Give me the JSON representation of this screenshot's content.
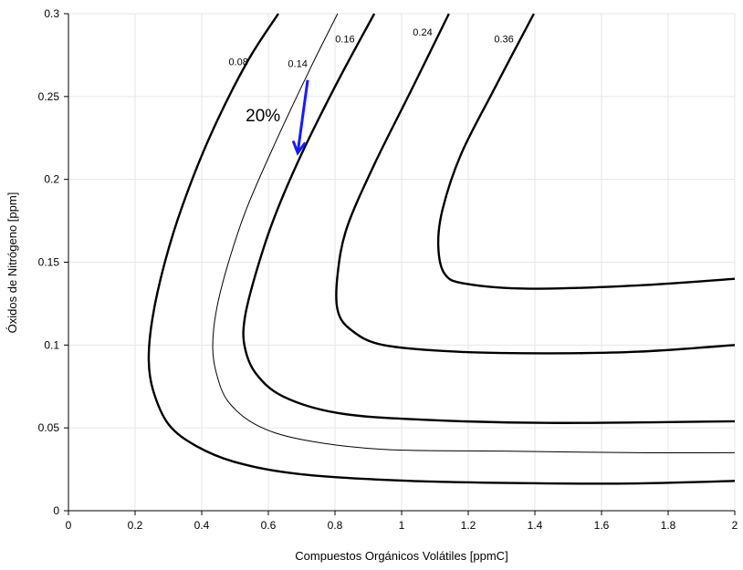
{
  "chart_data": {
    "type": "line",
    "title": "",
    "xlabel": "Compuestos Orgánicos Volátiles [ppmC]",
    "ylabel": "Óxidos de Nitrógeno [ppm]",
    "xlim": [
      0,
      2
    ],
    "ylim": [
      0,
      0.3
    ],
    "xticks": [
      0,
      0.2,
      0.4,
      0.6,
      0.8,
      1,
      1.2,
      1.4,
      1.6,
      1.8,
      2
    ],
    "xtick_labels": [
      "0",
      "0.2",
      "0.4",
      "0.6",
      "0.8",
      "1",
      "1.2",
      "1.4",
      "1.6",
      "1.8",
      "2"
    ],
    "yticks": [
      0,
      0.05,
      0.1,
      0.15,
      0.2,
      0.25,
      0.3
    ],
    "ytick_labels": [
      "0",
      "0.05",
      "0.1",
      "0.15",
      "0.2",
      "0.25",
      "0.3"
    ],
    "grid": true,
    "series": [
      {
        "name": "0.08",
        "weight": "bold",
        "label_at": [
          0.51,
          0.271
        ],
        "points": [
          [
            0.63,
            0.3
          ],
          [
            0.534,
            0.27
          ],
          [
            0.425,
            0.226
          ],
          [
            0.342,
            0.184
          ],
          [
            0.288,
            0.149
          ],
          [
            0.252,
            0.116
          ],
          [
            0.241,
            0.091
          ],
          [
            0.255,
            0.072
          ],
          [
            0.301,
            0.052
          ],
          [
            0.384,
            0.039
          ],
          [
            0.507,
            0.029
          ],
          [
            0.699,
            0.022
          ],
          [
            1.027,
            0.018
          ],
          [
            1.438,
            0.0165
          ],
          [
            1.712,
            0.0165
          ],
          [
            2.0,
            0.018
          ]
        ]
      },
      {
        "name": "0.14",
        "weight": "thin",
        "label_at": [
          0.688,
          0.27
        ],
        "points": [
          [
            0.808,
            0.3
          ],
          [
            0.726,
            0.267
          ],
          [
            0.616,
            0.22
          ],
          [
            0.534,
            0.182
          ],
          [
            0.479,
            0.149
          ],
          [
            0.444,
            0.121
          ],
          [
            0.433,
            0.099
          ],
          [
            0.444,
            0.083
          ],
          [
            0.479,
            0.066
          ],
          [
            0.562,
            0.052
          ],
          [
            0.699,
            0.043
          ],
          [
            0.945,
            0.037
          ],
          [
            1.301,
            0.036
          ],
          [
            1.712,
            0.035
          ],
          [
            2.0,
            0.035
          ]
        ]
      },
      {
        "name": "0.16",
        "weight": "bold",
        "label_at": [
          0.83,
          0.285
        ],
        "points": [
          [
            0.918,
            0.3
          ],
          [
            0.808,
            0.259
          ],
          [
            0.699,
            0.215
          ],
          [
            0.616,
            0.176
          ],
          [
            0.562,
            0.143
          ],
          [
            0.529,
            0.116
          ],
          [
            0.529,
            0.099
          ],
          [
            0.562,
            0.083
          ],
          [
            0.644,
            0.069
          ],
          [
            0.808,
            0.059
          ],
          [
            1.055,
            0.055
          ],
          [
            1.438,
            0.053
          ],
          [
            2.0,
            0.054
          ]
        ]
      },
      {
        "name": "0.24",
        "weight": "bold",
        "label_at": [
          1.063,
          0.289
        ],
        "points": [
          [
            1.142,
            0.3
          ],
          [
            1.027,
            0.253
          ],
          [
            0.918,
            0.209
          ],
          [
            0.836,
            0.171
          ],
          [
            0.808,
            0.143
          ],
          [
            0.808,
            0.121
          ],
          [
            0.849,
            0.109
          ],
          [
            0.945,
            0.1
          ],
          [
            1.164,
            0.096
          ],
          [
            1.438,
            0.095
          ],
          [
            1.712,
            0.096
          ],
          [
            2.0,
            0.1
          ]
        ]
      },
      {
        "name": "0.36",
        "weight": "bold",
        "label_at": [
          1.307,
          0.285
        ],
        "points": [
          [
            1.397,
            0.3
          ],
          [
            1.274,
            0.253
          ],
          [
            1.178,
            0.215
          ],
          [
            1.123,
            0.182
          ],
          [
            1.11,
            0.16
          ],
          [
            1.129,
            0.143
          ],
          [
            1.192,
            0.137
          ],
          [
            1.384,
            0.134
          ],
          [
            1.712,
            0.136
          ],
          [
            2.0,
            0.14
          ]
        ]
      }
    ],
    "annotations": [
      {
        "text": "20%",
        "at": [
          0.584,
          0.239
        ]
      },
      {
        "type": "arrow",
        "from": [
          0.718,
          0.26
        ],
        "to": [
          0.688,
          0.216
        ],
        "color": "#1a1aff"
      }
    ]
  }
}
